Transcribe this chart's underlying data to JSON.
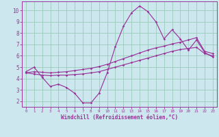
{
  "xlabel": "Windchill (Refroidissement éolien,°C)",
  "bg_color": "#cce8ee",
  "grid_color": "#99ccbb",
  "line_color": "#993399",
  "xlim": [
    -0.5,
    23.5
  ],
  "ylim": [
    1.5,
    10.8
  ],
  "xticks": [
    0,
    1,
    2,
    3,
    4,
    5,
    6,
    7,
    8,
    9,
    10,
    11,
    12,
    13,
    14,
    15,
    16,
    17,
    18,
    19,
    20,
    21,
    22,
    23
  ],
  "yticks": [
    2,
    3,
    4,
    5,
    6,
    7,
    8,
    9,
    10
  ],
  "line1_x": [
    0,
    1,
    2,
    3,
    4,
    5,
    6,
    7,
    8,
    9,
    10,
    11,
    12,
    13,
    14,
    15,
    16,
    17,
    18,
    19,
    20,
    21,
    22,
    23
  ],
  "line1_y": [
    4.6,
    5.0,
    4.1,
    3.3,
    3.5,
    3.2,
    2.7,
    1.85,
    1.85,
    2.7,
    4.5,
    6.8,
    8.6,
    9.8,
    10.4,
    9.9,
    9.0,
    7.5,
    8.3,
    7.5,
    6.5,
    7.4,
    6.3,
    5.9
  ],
  "line2_x": [
    0,
    1,
    2,
    3,
    4,
    5,
    6,
    7,
    8,
    9,
    10,
    11,
    12,
    13,
    14,
    15,
    16,
    17,
    18,
    19,
    20,
    21,
    22,
    23
  ],
  "line2_y": [
    4.5,
    4.4,
    4.3,
    4.25,
    4.3,
    4.3,
    4.35,
    4.4,
    4.5,
    4.6,
    4.8,
    5.0,
    5.2,
    5.4,
    5.6,
    5.8,
    6.0,
    6.2,
    6.4,
    6.55,
    6.65,
    6.75,
    6.2,
    6.0
  ],
  "line3_x": [
    0,
    1,
    2,
    3,
    4,
    5,
    6,
    7,
    8,
    9,
    10,
    11,
    12,
    13,
    14,
    15,
    16,
    17,
    18,
    19,
    20,
    21,
    22,
    23
  ],
  "line3_y": [
    4.5,
    4.6,
    4.55,
    4.5,
    4.55,
    4.6,
    4.7,
    4.8,
    4.9,
    5.05,
    5.25,
    5.5,
    5.75,
    6.0,
    6.25,
    6.5,
    6.7,
    6.85,
    7.05,
    7.2,
    7.4,
    7.6,
    6.4,
    6.2
  ]
}
